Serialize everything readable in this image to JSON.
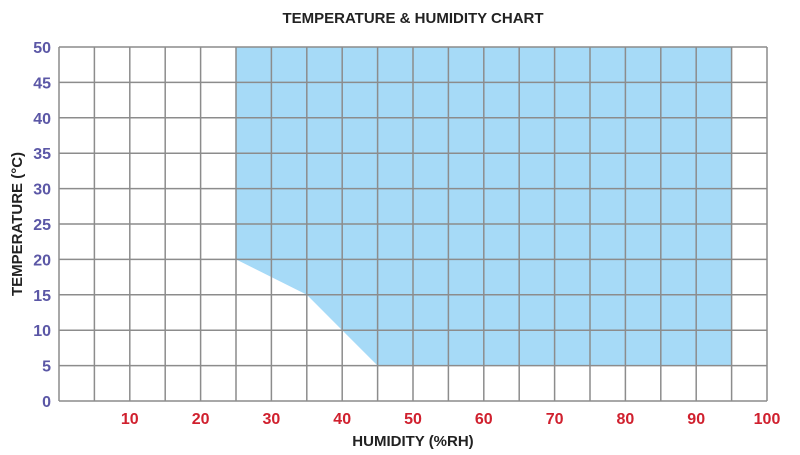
{
  "chart_data": {
    "type": "area",
    "title": "TEMPERATURE & HUMIDITY CHART",
    "xlabel": "HUMIDITY (%RH)",
    "ylabel": "TEMPERATURE (°C)",
    "xlim": [
      0,
      100
    ],
    "ylim": [
      0,
      50
    ],
    "x_grid_step": 5,
    "y_grid_step": 5,
    "grid": true,
    "x_tick_labels": [
      "10",
      "20",
      "30",
      "40",
      "50",
      "60",
      "70",
      "80",
      "90",
      "100"
    ],
    "y_tick_labels": [
      "0",
      "5",
      "10",
      "15",
      "20",
      "25",
      "30",
      "35",
      "40",
      "45",
      "50"
    ],
    "region": [
      {
        "x": 25,
        "y": 50
      },
      {
        "x": 95,
        "y": 50
      },
      {
        "x": 95,
        "y": 5
      },
      {
        "x": 45,
        "y": 5
      },
      {
        "x": 40,
        "y": 10
      },
      {
        "x": 35,
        "y": 15
      },
      {
        "x": 25,
        "y": 20
      }
    ],
    "colors": {
      "region_fill": "#a6daf7",
      "grid": "#8c8c8c",
      "x_tick": "#d0202e",
      "y_tick": "#5b57a6",
      "text": "#222222"
    }
  }
}
